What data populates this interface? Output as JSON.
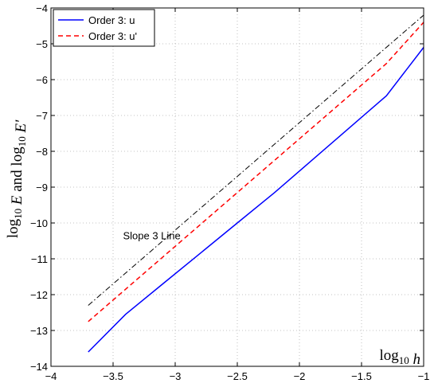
{
  "chart_data": {
    "type": "line",
    "xlabel": "log10 h",
    "ylabel": "log10 E and log10 E'",
    "xlim": [
      -4,
      -1
    ],
    "ylim": [
      -14,
      -4
    ],
    "grid": true,
    "legend_position": "top-left",
    "x_ticks": [
      "−4",
      "−3.5",
      "−3",
      "−2.5",
      "−2",
      "−1.5",
      "−1"
    ],
    "y_ticks": [
      "−4",
      "−5",
      "−6",
      "−7",
      "−8",
      "−9",
      "−10",
      "−11",
      "−12",
      "−13",
      "−14"
    ],
    "series": [
      {
        "name": "Order 3: u",
        "color": "#0000ff",
        "style": "solid",
        "x": [
          -3.7,
          -3.4,
          -3.1,
          -2.8,
          -2.5,
          -2.2,
          -1.9,
          -1.6,
          -1.3,
          -1.0
        ],
        "y": [
          -13.6,
          -12.55,
          -11.7,
          -10.85,
          -10.0,
          -9.15,
          -8.25,
          -7.35,
          -6.45,
          -5.1
        ]
      },
      {
        "name": "Order 3: u'",
        "color": "#ff0000",
        "style": "dashed",
        "x": [
          -3.7,
          -3.4,
          -3.1,
          -2.8,
          -2.5,
          -2.2,
          -1.9,
          -1.6,
          -1.3,
          -1.0
        ],
        "y": [
          -12.75,
          -11.85,
          -10.95,
          -10.05,
          -9.15,
          -8.25,
          -7.35,
          -6.45,
          -5.55,
          -4.4
        ]
      },
      {
        "name": "",
        "color": "#000000",
        "style": "dashdot",
        "x": [
          -3.7,
          -1.0
        ],
        "y": [
          -12.3,
          -4.2
        ]
      }
    ],
    "annotations": [
      {
        "text": "Slope 3 Line",
        "x": -3.42,
        "y": -10.45
      }
    ]
  }
}
